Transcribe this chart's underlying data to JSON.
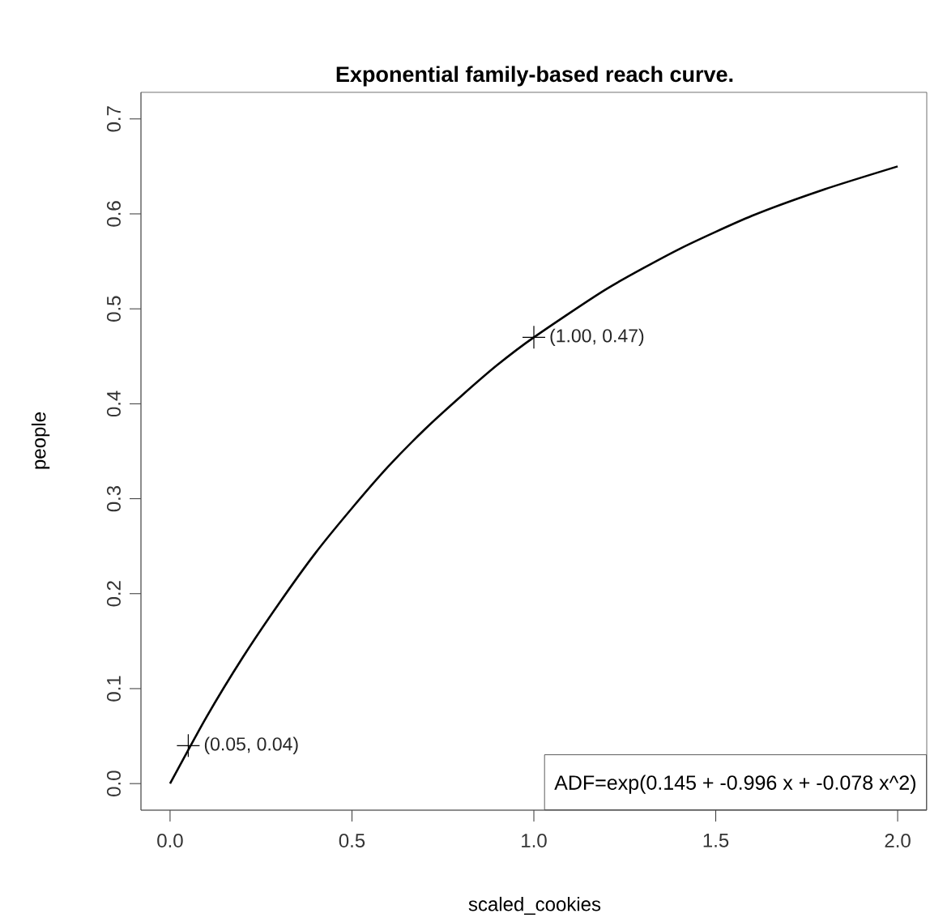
{
  "chart_data": {
    "type": "line",
    "title": "Exponential family-based reach curve.",
    "xlabel": "scaled_cookies",
    "ylabel": "people",
    "xlim": [
      -0.08,
      2.08
    ],
    "ylim": [
      -0.028,
      0.728
    ],
    "xticks": [
      {
        "value": 0,
        "label": "0.0"
      },
      0.5,
      {
        "value": 1,
        "label": "1.0"
      },
      1.5,
      {
        "value": 2,
        "label": "2.0"
      }
    ],
    "yticks": [
      {
        "value": 0,
        "label": "0.0"
      },
      0.1,
      0.2,
      0.3,
      0.4,
      0.5,
      0.6,
      0.7
    ],
    "grid": false,
    "annotations": [
      "ADF=exp(0.145 + -0.996 x + -0.078 x^2)"
    ],
    "series": [
      {
        "color": "#000000",
        "x": [
          0,
          0.1,
          0.2,
          0.3,
          0.4,
          0.5,
          0.6,
          0.7,
          0.8,
          0.9,
          1.0,
          1.2,
          1.4,
          1.6,
          1.8,
          2.0
        ],
        "values": [
          0,
          0.07,
          0.133,
          0.19,
          0.243,
          0.29,
          0.334,
          0.373,
          0.408,
          0.441,
          0.47,
          0.521,
          0.563,
          0.598,
          0.626,
          0.65
        ]
      },
      {
        "type": "scatter",
        "marker": "cross",
        "color": "#000000",
        "x": [
          0.05,
          1.0
        ],
        "values": [
          0.04,
          0.47
        ],
        "value_labels": [
          "(0.05, 0.04)",
          "(1.00, 0.47)"
        ]
      }
    ]
  }
}
